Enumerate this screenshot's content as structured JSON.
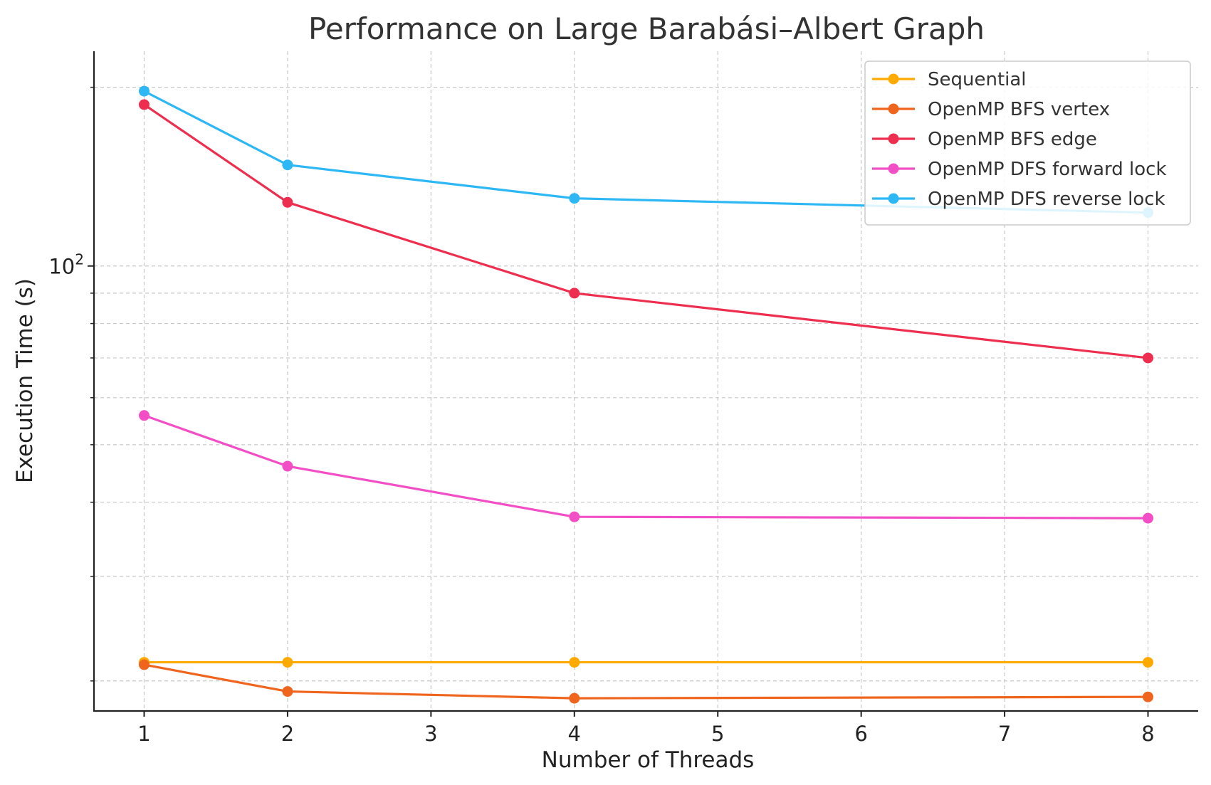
{
  "chart_data": {
    "type": "line",
    "title": "Performance on Large Barabási–Albert Graph",
    "xlabel": "Number of Threads",
    "ylabel": "Execution Time (s)",
    "yscale": "log",
    "xlim": [
      0.65,
      8.35
    ],
    "ylim": [
      17.8,
      230
    ],
    "x_ticks": [
      1,
      2,
      3,
      4,
      5,
      6,
      7,
      8
    ],
    "x_tick_labels": [
      "1",
      "2",
      "3",
      "4",
      "5",
      "6",
      "7",
      "8"
    ],
    "y_major_tick": {
      "value": 100,
      "base": "10",
      "exp": "2"
    },
    "grid": true,
    "legend_position": "top-right",
    "x": [
      1,
      2,
      4,
      8
    ],
    "series": [
      {
        "name": "Sequential",
        "color": "#FFAA00",
        "values": [
          21.5,
          21.5,
          21.5,
          21.5
        ]
      },
      {
        "name": "OpenMP BFS vertex",
        "color": "#F0651E",
        "values": [
          21.3,
          19.2,
          18.7,
          18.8
        ]
      },
      {
        "name": "OpenMP BFS edge",
        "color": "#EE2E4E",
        "values": [
          187,
          128,
          90,
          70
        ]
      },
      {
        "name": "OpenMP DFS forward lock",
        "color": "#F24FC6",
        "values": [
          56,
          46,
          37.8,
          37.6
        ]
      },
      {
        "name": "OpenMP DFS reverse lock",
        "color": "#2DB8F5",
        "values": [
          197,
          148,
          130,
          123
        ]
      }
    ]
  }
}
